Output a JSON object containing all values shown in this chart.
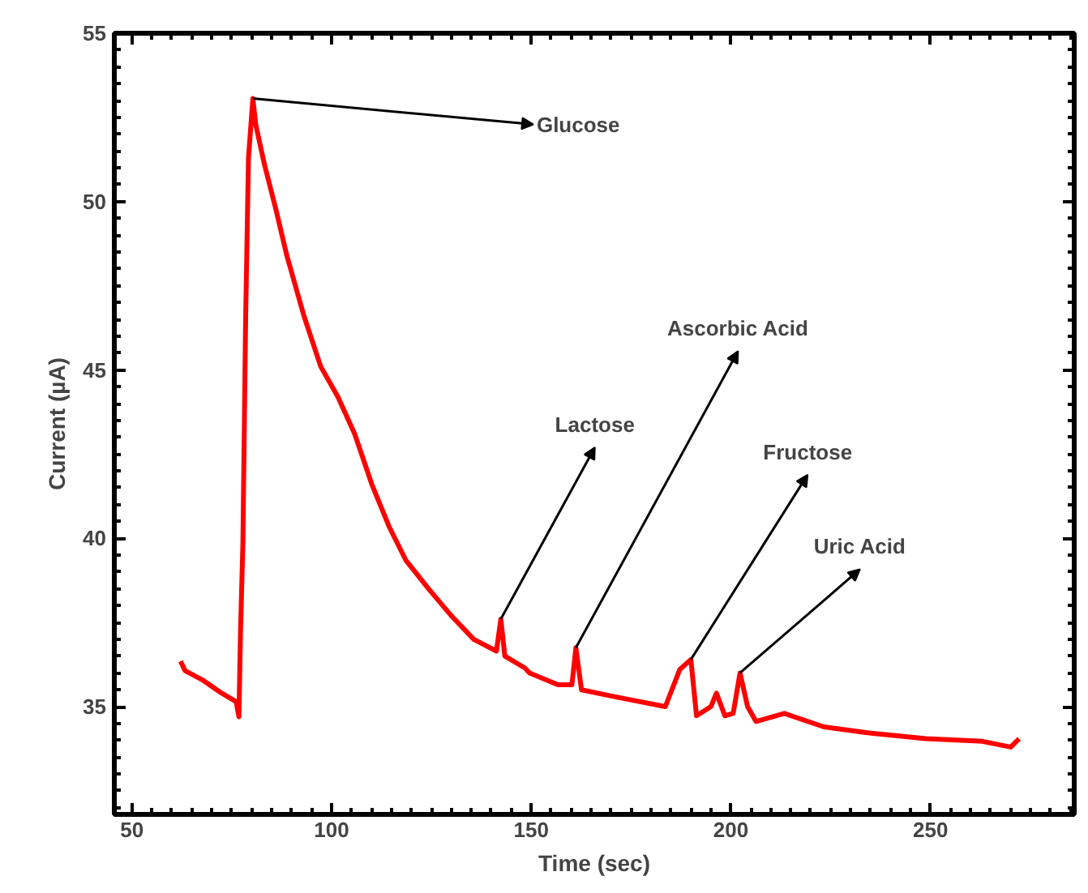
{
  "chart_data": {
    "type": "line",
    "xlabel": "Time (sec)",
    "ylabel": "Current (µA)",
    "xlim": [
      45.6,
      286
    ],
    "ylim": [
      31.8,
      55
    ],
    "xticks": [
      50,
      100,
      150,
      200,
      250
    ],
    "yticks": [
      35,
      40,
      45,
      50,
      55
    ],
    "grid": false,
    "series": [
      {
        "color": "#ff0000",
        "x": [
          62.2,
          63.3,
          67.6,
          72.5,
          76.1,
          76.8,
          77.2,
          77.8,
          78.5,
          79.2,
          80.3,
          81.0,
          83.2,
          86.0,
          88.8,
          93.1,
          97.3,
          101.6,
          105.8,
          110.1,
          114.4,
          118.6,
          124.3,
          130.0,
          135.6,
          141.3,
          142.4,
          143.4,
          148.4,
          149.6,
          156.7,
          160.2,
          161.2,
          162.6,
          170.8,
          183.6,
          187.2,
          190.0,
          191.4,
          195.0,
          196.4,
          198.5,
          200.6,
          202.3,
          204.2,
          206.3,
          213.4,
          223.3,
          234.6,
          248.8,
          263.0,
          270.1,
          272.2
        ],
        "values": [
          36.35,
          36.07,
          35.8,
          35.4,
          35.15,
          34.7,
          37.2,
          39.85,
          46.6,
          51.3,
          53.06,
          52.3,
          51.1,
          49.8,
          48.4,
          46.6,
          45.1,
          44.2,
          43.1,
          41.6,
          40.35,
          39.35,
          38.5,
          37.7,
          37.0,
          36.65,
          37.6,
          36.5,
          36.15,
          36.0,
          35.65,
          35.65,
          36.75,
          35.5,
          35.3,
          35.0,
          36.1,
          36.4,
          34.73,
          35.0,
          35.4,
          34.73,
          34.8,
          36.0,
          35.0,
          34.56,
          34.8,
          34.4,
          34.22,
          34.05,
          33.97,
          33.8,
          34.05
        ]
      }
    ],
    "annotations": [
      {
        "text": "Glucose",
        "x": 80.3,
        "y": 53.06
      },
      {
        "text": "Lactose",
        "x": 142.4,
        "y": 37.6
      },
      {
        "text": "Ascorbic Acid",
        "x": 161.2,
        "y": 36.75
      },
      {
        "text": "Fructose",
        "x": 190.0,
        "y": 36.4
      },
      {
        "text": "Uric Acid",
        "x": 202.3,
        "y": 36.0
      }
    ]
  }
}
